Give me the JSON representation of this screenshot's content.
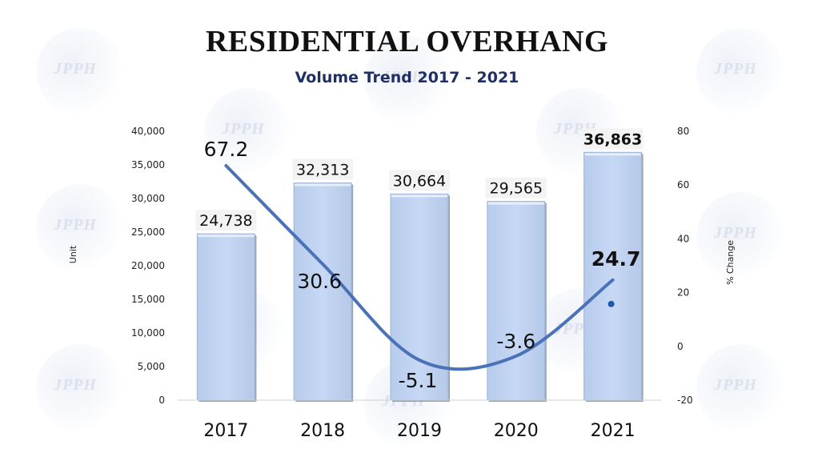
{
  "title": "RESIDENTIAL OVERHANG",
  "subtitle": "Volume Trend 2017 - 2021",
  "watermark_text": "JPPH",
  "chart_data": {
    "type": "bar",
    "title": "RESIDENTIAL OVERHANG",
    "subtitle": "Volume Trend 2017 - 2021",
    "categories": [
      "2017",
      "2018",
      "2019",
      "2020",
      "2021"
    ],
    "series": [
      {
        "name": "Unit",
        "type": "bar",
        "axis": "left",
        "values": [
          24738,
          32313,
          30664,
          29565,
          36863
        ],
        "labels": [
          "24,738",
          "32,313",
          "30,664",
          "29,565",
          "36,863"
        ],
        "color": "#c2d5f2"
      },
      {
        "name": "% Change",
        "type": "line",
        "axis": "right",
        "values": [
          67.2,
          30.6,
          -5.1,
          -3.6,
          24.7
        ],
        "labels": [
          "67.2",
          "30.6",
          "-5.1",
          "-3.6",
          "24.7"
        ],
        "color": "#4a72b8",
        "highlight_color": "#e41e26"
      }
    ],
    "ylabel": "Unit",
    "ylabel_right": "% Change",
    "ylim": [
      0,
      40000
    ],
    "ylim_right": [
      -20,
      80
    ],
    "yticks": [
      "0",
      "5,000",
      "10,000",
      "15,000",
      "20,000",
      "25,000",
      "30,000",
      "35,000",
      "40,000"
    ],
    "yticks_right": [
      "-20",
      "0",
      "20",
      "40",
      "60",
      "80"
    ],
    "grid": false,
    "legend": "none"
  }
}
